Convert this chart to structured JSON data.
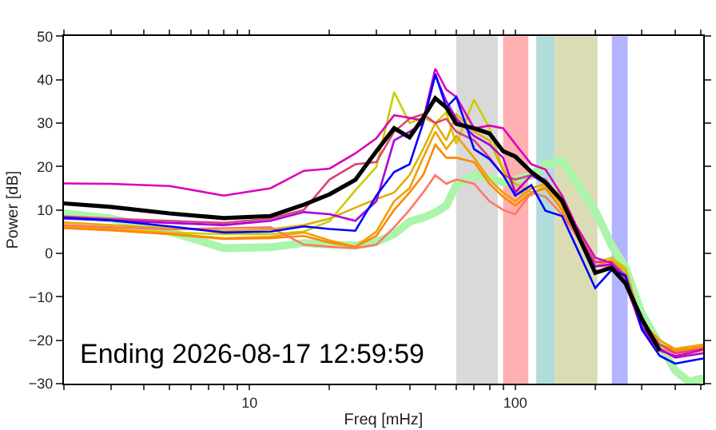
{
  "chart_data": [
    {
      "type": "line",
      "xlabel": "Freq [mHz]",
      "ylabel": "Power [dB]",
      "log": "x",
      "grid": false,
      "legend": false,
      "marker": "none",
      "line_style": "solid",
      "xlim": [
        2,
        510
      ],
      "ylim": [
        -30,
        50
      ],
      "xticks": [
        {
          "value": 2,
          "label": null
        },
        {
          "value": 3,
          "label": null
        },
        {
          "value": 4,
          "label": null
        },
        {
          "value": 5,
          "label": null
        },
        {
          "value": 6,
          "label": null
        },
        {
          "value": 7,
          "label": null
        },
        {
          "value": 8,
          "label": null
        },
        {
          "value": 9,
          "label": null
        },
        10,
        {
          "value": 20,
          "label": null
        },
        {
          "value": 30,
          "label": null
        },
        {
          "value": 40,
          "label": null
        },
        {
          "value": 50,
          "label": null
        },
        {
          "value": 60,
          "label": null
        },
        {
          "value": 70,
          "label": null
        },
        {
          "value": 80,
          "label": null
        },
        {
          "value": 90,
          "label": null
        },
        100,
        {
          "value": 200,
          "label": null
        },
        {
          "value": 300,
          "label": null
        },
        {
          "value": 400,
          "label": null
        },
        {
          "value": 500,
          "label": null
        }
      ],
      "yticks": [
        {
          "value": -30,
          "label": "−30"
        },
        {
          "value": -20,
          "label": "−20"
        },
        {
          "value": -10,
          "label": "−10"
        },
        0,
        10,
        20,
        30,
        40,
        50
      ],
      "x": [
        2,
        3,
        5,
        8,
        12,
        16,
        20,
        25,
        30,
        35,
        40,
        45,
        50,
        55,
        60,
        70,
        80,
        90,
        100,
        115,
        130,
        150,
        170,
        200,
        230,
        260,
        300,
        350,
        400,
        450,
        510
      ],
      "bands": [
        {
          "axis": "x",
          "from": 60,
          "to": 86,
          "color": "#d9d9d9"
        },
        {
          "axis": "x",
          "from": 90,
          "to": 112,
          "color": "#ffb0b0"
        },
        {
          "axis": "x",
          "from": 120,
          "to": 141,
          "color": "#b0dcdc"
        },
        {
          "axis": "x",
          "from": 141,
          "to": 204,
          "color": "#dcdcb4"
        },
        {
          "axis": "x",
          "from": 231,
          "to": 265,
          "color": "#b3b3ff"
        }
      ],
      "series": [
        {
          "color": "#aaf5aa",
          "values": [
            9.2,
            8,
            5,
            1.2,
            1.4,
            2.4,
            2,
            1.8,
            2.6,
            4.4,
            7.3,
            8.2,
            9.4,
            11,
            15.7,
            18,
            17.4,
            16.3,
            16.9,
            17.9,
            20.5,
            21.4,
            16.3,
            9.8,
            2,
            -3.3,
            -14,
            -21,
            -27,
            -29.5,
            -28.8
          ]
        },
        {
          "color": "#cccc00",
          "values": [
            6.2,
            5.6,
            4.8,
            4.4,
            4.4,
            5,
            7.4,
            14.5,
            19.9,
            37.1,
            30,
            31.2,
            30,
            32.4,
            25.2,
            35.4,
            28.8,
            19.3,
            14.5,
            13.3,
            15.7,
            13.3,
            5,
            -2.1,
            -1,
            -3.3,
            -16.4,
            -21.2,
            -22.4,
            -23,
            -22.4
          ]
        },
        {
          "color": "#ddb000",
          "values": [
            7.1,
            6.5,
            5.8,
            5.2,
            5.5,
            6.5,
            8,
            10.5,
            12.5,
            14,
            18,
            24,
            30,
            26,
            32,
            28,
            26,
            19,
            16,
            14,
            15,
            12,
            6,
            -3,
            -1.5,
            -4,
            -16,
            -21,
            -22,
            -22,
            -21.5
          ]
        },
        {
          "color": "#f0a000",
          "values": [
            6,
            5.5,
            4.5,
            3.5,
            3.8,
            4.8,
            3,
            1.5,
            5,
            12,
            15,
            22,
            28,
            24,
            27,
            22,
            17,
            14,
            12,
            15,
            16,
            11,
            5,
            -2,
            -2,
            -5,
            -16,
            -20,
            -22,
            -21.5,
            -21
          ]
        },
        {
          "color": "#ff8800",
          "values": [
            5.8,
            5.3,
            4.4,
            3.3,
            3.5,
            4,
            2.5,
            1.5,
            4,
            10,
            14,
            18,
            25,
            22,
            22,
            21,
            16,
            13,
            11,
            14,
            15,
            10,
            4,
            -3,
            -2.5,
            -5.5,
            -16.5,
            -21,
            -22.5,
            -22,
            -21.5
          ]
        },
        {
          "color": "#ff7766",
          "values": [
            6.5,
            6,
            5.5,
            5.8,
            6,
            2,
            1.5,
            1.2,
            2,
            6,
            10,
            14,
            18,
            16,
            17,
            16,
            12,
            10,
            9,
            14,
            13,
            9,
            4,
            -3,
            -3,
            -6,
            -17,
            -22,
            -23,
            -22.5,
            -22
          ]
        },
        {
          "color": "#dd4477",
          "values": [
            8.5,
            8,
            7.5,
            7,
            8,
            10,
            17,
            20.5,
            21,
            28,
            31,
            32,
            30,
            31,
            28,
            26,
            22,
            18,
            17,
            18,
            17,
            12,
            5,
            -2,
            -2,
            -5,
            -16,
            -21,
            -23,
            -22.5,
            -22
          ]
        },
        {
          "color": "#dd00bb",
          "values": [
            16.1,
            16,
            15.5,
            13.3,
            15,
            19,
            19.5,
            23,
            26.5,
            31.8,
            31.2,
            30.6,
            42.5,
            37.7,
            36,
            28.8,
            29.4,
            28.8,
            25.2,
            20.5,
            19.3,
            13.3,
            6.2,
            -1,
            -2.2,
            -6.9,
            -17.6,
            -22.4,
            -23.6,
            -23,
            -22.1
          ]
        },
        {
          "color": "#aa00dd",
          "values": [
            8,
            7.6,
            7,
            6.5,
            7.5,
            9.5,
            9,
            7.5,
            12,
            26,
            28,
            30,
            41,
            35,
            31,
            27,
            25,
            22,
            14,
            18,
            16,
            12,
            5,
            -3,
            -2.5,
            -5.5,
            -17,
            -22,
            -24,
            -23.5,
            -23
          ]
        },
        {
          "color": "#0000ff",
          "values": [
            8.2,
            7.6,
            6.2,
            4.8,
            5,
            6.2,
            5.6,
            5.2,
            13.3,
            18.7,
            20.5,
            30,
            41.3,
            33.6,
            36,
            24,
            21.7,
            18,
            13.3,
            15.7,
            9.8,
            8.6,
            1.4,
            -8,
            -3.9,
            -5.1,
            -17.6,
            -23.6,
            -25.4,
            -24.8,
            -24.2
          ]
        },
        {
          "color": "#000000",
          "values": [
            11.5,
            10.7,
            9.2,
            8.1,
            8.6,
            11.2,
            13.6,
            16.9,
            23.5,
            28.8,
            26.7,
            31.2,
            35.7,
            33.6,
            29.8,
            28.8,
            27.6,
            23.5,
            22.3,
            18.7,
            16.3,
            12.1,
            5,
            -4.5,
            -3.3,
            -6.9,
            -15.2,
            -22.4,
            null,
            null,
            null
          ]
        }
      ],
      "annotations": [
        "Ending 2026-08-17 12:59:59"
      ]
    }
  ]
}
